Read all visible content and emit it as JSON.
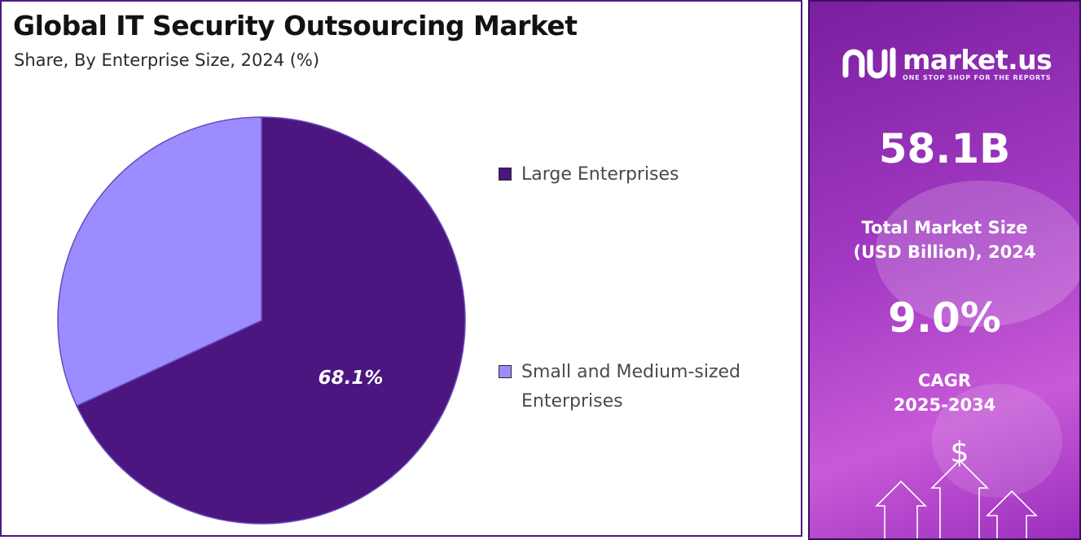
{
  "header": {
    "title": "Global IT Security Outsourcing Market",
    "subtitle": "Share, By Enterprise Size, 2024 (%)"
  },
  "chart_data": {
    "type": "pie",
    "title": "Global IT Security Outsourcing Market",
    "subtitle": "Share, By Enterprise Size, 2024 (%)",
    "categories": [
      "Large Enterprises",
      "Small and Medium-sized Enterprises"
    ],
    "values": [
      68.1,
      31.9
    ],
    "colors": [
      "#4b1680",
      "#9b8cff"
    ],
    "data_labels": [
      "68.1%",
      ""
    ],
    "legend_position": "right",
    "start_angle_deg": 0,
    "direction": "clockwise"
  },
  "legend": {
    "items": [
      {
        "label": "Large Enterprises",
        "color": "#4b1680"
      },
      {
        "label": "Small and Medium-sized Enterprises",
        "color": "#9b8cff"
      }
    ]
  },
  "sidebar": {
    "brand_name": "market.us",
    "brand_tagline": "ONE STOP SHOP FOR THE REPORTS",
    "market_size_value": "58.1B",
    "market_size_label_line1": "Total Market Size",
    "market_size_label_line2": "(USD Billion), 2024",
    "cagr_value": "9.0%",
    "cagr_label_line1": "CAGR",
    "cagr_label_line2": "2025-2034",
    "dollar_symbol": "$"
  }
}
